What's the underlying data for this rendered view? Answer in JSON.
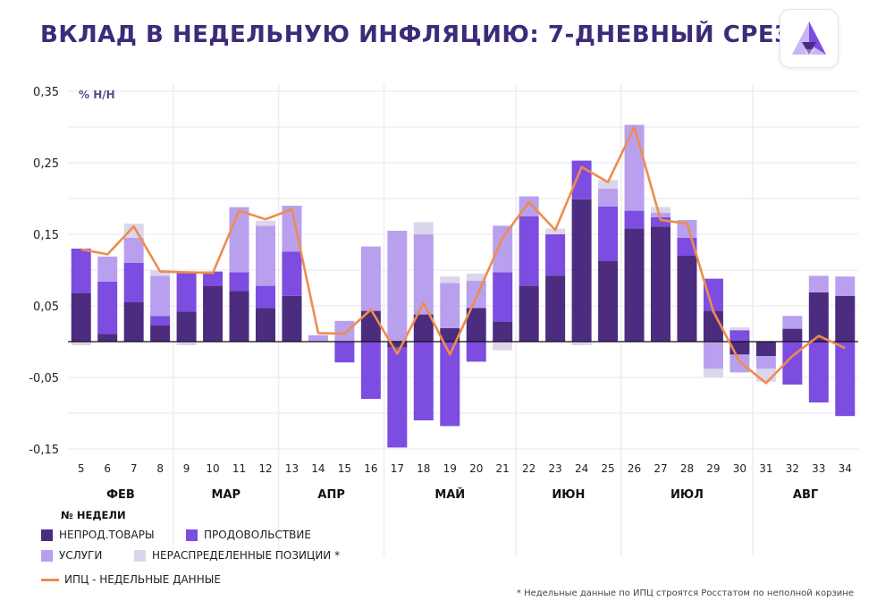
{
  "title": "ВКЛАД В НЕДЕЛЬНУЮ ИНФЛЯЦИЮ: 7-ДНЕВНЫЙ СРЕЗ",
  "footnote": "* Недельные данные по ИПЦ строятся Росстатом по неполной корзине",
  "legend_title": "№ НЕДЕЛИ",
  "logo_icon": "triangle-logo-icon",
  "colors": {
    "nonfood": "#4b2c7f",
    "food": "#7d4ce0",
    "services": "#b9a0ef",
    "unallocated": "#dcd6ea",
    "cpi_line": "#ef8c4c",
    "title": "#3d2a78"
  },
  "chart_data": {
    "type": "bar",
    "stacked": true,
    "ylabel": "% Н/Н",
    "ylim": [
      -0.15,
      0.35
    ],
    "yticks": [
      "-0,15",
      "-0,05",
      "0,05",
      "0,15",
      "0,25",
      "0,35"
    ],
    "ytick_values": [
      -0.15,
      -0.05,
      0.05,
      0.15,
      0.25,
      0.35
    ],
    "categories": [
      "5",
      "6",
      "7",
      "8",
      "9",
      "10",
      "11",
      "12",
      "13",
      "14",
      "15",
      "16",
      "17",
      "18",
      "19",
      "20",
      "21",
      "22",
      "23",
      "24",
      "25",
      "26",
      "27",
      "28",
      "29",
      "30",
      "31",
      "32",
      "33",
      "34"
    ],
    "months": [
      {
        "label": "ФЕВ",
        "from": 0,
        "to": 3
      },
      {
        "label": "МАР",
        "from": 4,
        "to": 7
      },
      {
        "label": "АПР",
        "from": 8,
        "to": 11
      },
      {
        "label": "МАЙ",
        "from": 12,
        "to": 16
      },
      {
        "label": "ИЮН",
        "from": 17,
        "to": 20
      },
      {
        "label": "ИЮЛ",
        "from": 21,
        "to": 25
      },
      {
        "label": "АВГ",
        "from": 26,
        "to": 29
      }
    ],
    "grid": true,
    "legend_position": "bottom-left",
    "series": [
      {
        "name": "НЕПРОД.ТОВАРЫ",
        "key": "nonfood",
        "values": [
          0.068,
          0.011,
          0.055,
          0.023,
          0.042,
          0.078,
          0.071,
          0.047,
          0.064,
          0,
          0,
          0.043,
          -0.008,
          0.038,
          0.019,
          0.047,
          0.028,
          0.078,
          0.092,
          0.199,
          0.113,
          0.158,
          0.161,
          0.12,
          0.043,
          -0.018,
          -0.02,
          0.018,
          0.069,
          0.064
        ]
      },
      {
        "name": "ПРОДОВОЛЬСТВИЕ",
        "key": "food",
        "values": [
          0.062,
          0.073,
          0.055,
          0.013,
          0.055,
          0.02,
          0.026,
          0.031,
          0.062,
          0,
          -0.029,
          -0.08,
          -0.14,
          -0.11,
          -0.118,
          -0.028,
          0.069,
          0.097,
          0.058,
          0.054,
          0.076,
          0.025,
          0.013,
          0.025,
          0.045,
          0.016,
          0,
          -0.06,
          -0.085,
          -0.104
        ]
      },
      {
        "name": "УСЛУГИ",
        "key": "services",
        "values": [
          0,
          0.035,
          0.035,
          0.056,
          0,
          0,
          0.091,
          0.084,
          0.064,
          0.009,
          0.029,
          0.09,
          0.155,
          0.112,
          0.063,
          0.038,
          0.065,
          0.028,
          0,
          0,
          0.025,
          0.12,
          0.006,
          0.025,
          -0.038,
          -0.025,
          -0.018,
          0.018,
          0.023,
          0.027
        ]
      },
      {
        "name": "НЕРАСПРЕДЕЛЕННЫЕ ПОЗИЦИИ *",
        "key": "unallocated",
        "values": [
          -0.005,
          0,
          0.02,
          0.008,
          -0.005,
          0,
          0,
          0.007,
          0,
          0,
          0,
          0,
          0,
          0.017,
          0.009,
          0.01,
          -0.012,
          0,
          0.008,
          -0.005,
          0.012,
          0,
          0.008,
          0,
          -0.012,
          0.004,
          -0.018,
          0,
          0,
          0
        ]
      },
      {
        "name": "ИПЦ - НЕДЕЛЬНЫЕ ДАННЫЕ",
        "key": "cpi",
        "type": "line",
        "values": [
          0.129,
          0.122,
          0.161,
          0.098,
          0.097,
          0.096,
          0.183,
          0.171,
          0.185,
          0.012,
          0.011,
          0.045,
          -0.017,
          0.054,
          -0.018,
          0.062,
          0.145,
          0.195,
          0.156,
          0.244,
          0.223,
          0.3,
          0.17,
          0.165,
          0.042,
          -0.028,
          -0.058,
          -0.02,
          0.008,
          -0.009
        ]
      }
    ]
  }
}
